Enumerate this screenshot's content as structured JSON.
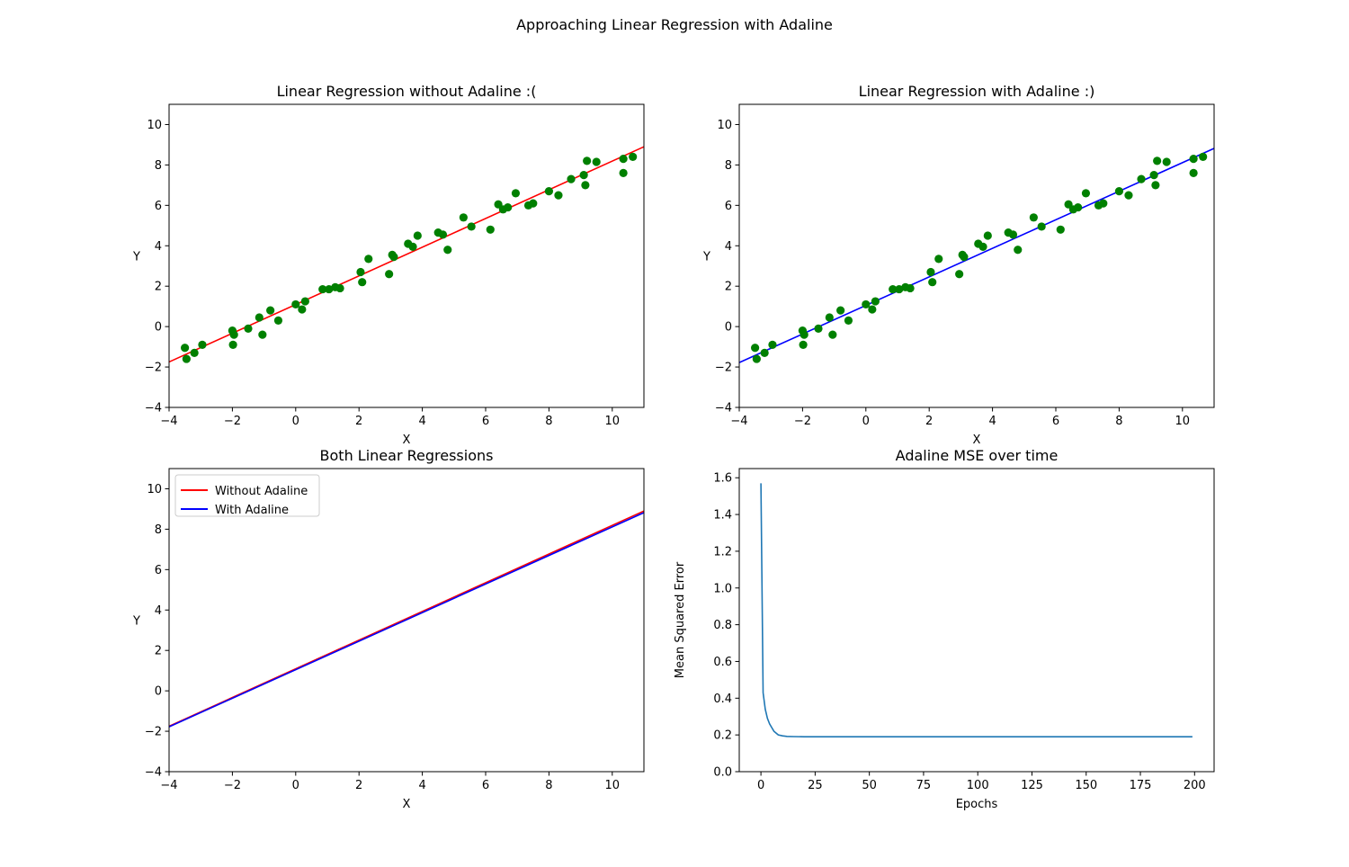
{
  "figure": {
    "suptitle": "Approaching Linear Regression with Adaline"
  },
  "colors": {
    "points": "#008000",
    "without_adaline": "#ff0000",
    "with_adaline": "#0000ff",
    "mse": "#1f77b4",
    "axes": "#000000",
    "background": "#ffffff"
  },
  "chart_data": [
    {
      "type": "scatter",
      "title": "Linear Regression without Adaline :(",
      "xlabel": "X",
      "ylabel": "Y",
      "xlim": [
        -4,
        11
      ],
      "ylim": [
        -4,
        11
      ],
      "xticks": [
        -4,
        -2,
        0,
        2,
        4,
        6,
        8,
        10
      ],
      "yticks": [
        -4,
        -2,
        0,
        2,
        4,
        6,
        8,
        10
      ],
      "grid": false,
      "points": {
        "x": [
          -3.5,
          -3.45,
          -3.2,
          -2.95,
          -2.0,
          -1.98,
          -1.95,
          -1.5,
          -1.15,
          -1.05,
          -0.8,
          -0.55,
          0.0,
          0.2,
          0.3,
          0.85,
          1.05,
          1.25,
          1.4,
          2.05,
          2.1,
          2.3,
          2.95,
          3.05,
          3.1,
          3.55,
          3.7,
          3.85,
          4.5,
          4.65,
          4.8,
          5.3,
          5.55,
          6.15,
          6.4,
          6.55,
          6.7,
          6.95,
          7.35,
          7.5,
          8.0,
          8.3,
          8.7,
          9.1,
          9.15,
          9.2,
          9.5,
          10.35,
          10.35,
          10.65
        ],
        "y": [
          -1.05,
          -1.6,
          -1.3,
          -0.9,
          -0.2,
          -0.9,
          -0.4,
          -0.1,
          0.45,
          -0.4,
          0.8,
          0.3,
          1.1,
          0.85,
          1.25,
          1.85,
          1.85,
          1.95,
          1.9,
          2.7,
          2.2,
          3.35,
          2.6,
          3.55,
          3.45,
          4.1,
          3.95,
          4.5,
          4.65,
          4.55,
          3.8,
          5.4,
          4.95,
          4.8,
          6.05,
          5.8,
          5.9,
          6.6,
          6.0,
          6.1,
          6.7,
          6.5,
          7.3,
          7.5,
          7.0,
          8.2,
          8.15,
          8.3,
          7.6,
          8.4
        ]
      },
      "series": [
        {
          "name": "Without Adaline",
          "x": [
            -4,
            11
          ],
          "y": [
            -1.75,
            8.9
          ]
        }
      ]
    },
    {
      "type": "scatter",
      "title": "Linear Regression with Adaline :)",
      "xlabel": "X",
      "ylabel": "Y",
      "xlim": [
        -4,
        11
      ],
      "ylim": [
        -4,
        11
      ],
      "xticks": [
        -4,
        -2,
        0,
        2,
        4,
        6,
        8,
        10
      ],
      "yticks": [
        -4,
        -2,
        0,
        2,
        4,
        6,
        8,
        10
      ],
      "grid": false,
      "points": {
        "x": [
          -3.5,
          -3.45,
          -3.2,
          -2.95,
          -2.0,
          -1.98,
          -1.95,
          -1.5,
          -1.15,
          -1.05,
          -0.8,
          -0.55,
          0.0,
          0.2,
          0.3,
          0.85,
          1.05,
          1.25,
          1.4,
          2.05,
          2.1,
          2.3,
          2.95,
          3.05,
          3.1,
          3.55,
          3.7,
          3.85,
          4.5,
          4.65,
          4.8,
          5.3,
          5.55,
          6.15,
          6.4,
          6.55,
          6.7,
          6.95,
          7.35,
          7.5,
          8.0,
          8.3,
          8.7,
          9.1,
          9.15,
          9.2,
          9.5,
          10.35,
          10.35,
          10.65
        ],
        "y": [
          -1.05,
          -1.6,
          -1.3,
          -0.9,
          -0.2,
          -0.9,
          -0.4,
          -0.1,
          0.45,
          -0.4,
          0.8,
          0.3,
          1.1,
          0.85,
          1.25,
          1.85,
          1.85,
          1.95,
          1.9,
          2.7,
          2.2,
          3.35,
          2.6,
          3.55,
          3.45,
          4.1,
          3.95,
          4.5,
          4.65,
          4.55,
          3.8,
          5.4,
          4.95,
          4.8,
          6.05,
          5.8,
          5.9,
          6.6,
          6.0,
          6.1,
          6.7,
          6.5,
          7.3,
          7.5,
          7.0,
          8.2,
          8.15,
          8.3,
          7.6,
          8.4
        ]
      },
      "series": [
        {
          "name": "With Adaline",
          "x": [
            -4,
            11
          ],
          "y": [
            -1.78,
            8.82
          ]
        }
      ]
    },
    {
      "type": "line",
      "title": "Both Linear Regressions",
      "xlabel": "X",
      "ylabel": "Y",
      "xlim": [
        -4,
        11
      ],
      "ylim": [
        -4,
        11
      ],
      "xticks": [
        -4,
        -2,
        0,
        2,
        4,
        6,
        8,
        10
      ],
      "yticks": [
        -4,
        -2,
        0,
        2,
        4,
        6,
        8,
        10
      ],
      "grid": false,
      "legend": "top-left",
      "series": [
        {
          "name": "Without Adaline",
          "x": [
            -4,
            11
          ],
          "y": [
            -1.75,
            8.9
          ]
        },
        {
          "name": "With Adaline",
          "x": [
            -4,
            11
          ],
          "y": [
            -1.78,
            8.82
          ]
        }
      ]
    },
    {
      "type": "line",
      "title": "Adaline MSE over time",
      "xlabel": "Epochs",
      "ylabel": "Mean Squared Error",
      "xlim": [
        -10,
        209
      ],
      "ylim": [
        0,
        1.65
      ],
      "xticks": [
        0,
        25,
        50,
        75,
        100,
        125,
        150,
        175,
        200
      ],
      "yticks": [
        0.0,
        0.2,
        0.4,
        0.6,
        0.8,
        1.0,
        1.2,
        1.4,
        1.6
      ],
      "ytick_decimals": 1,
      "grid": false,
      "series": [
        {
          "x": [
            0,
            1,
            2,
            3,
            4,
            5,
            6,
            7,
            8,
            10,
            12,
            15,
            20,
            30,
            50,
            100,
            150,
            199
          ],
          "y": [
            1.57,
            0.43,
            0.34,
            0.29,
            0.26,
            0.24,
            0.22,
            0.21,
            0.2,
            0.195,
            0.192,
            0.191,
            0.19,
            0.19,
            0.19,
            0.19,
            0.19,
            0.19
          ]
        }
      ]
    }
  ]
}
